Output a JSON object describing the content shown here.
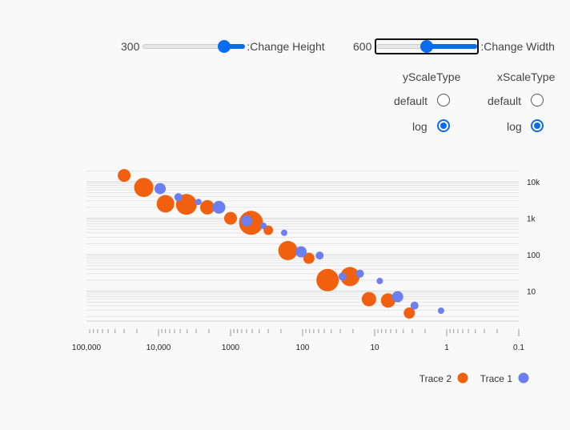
{
  "controls": {
    "height": {
      "value": "300",
      "label": ":Change Height",
      "fraction": 0.85
    },
    "width": {
      "value": "600",
      "label": ":Change Width",
      "fraction": 0.5
    },
    "y_scale": {
      "title": "yScaleType",
      "options": [
        "default",
        "log"
      ],
      "selected": "log"
    },
    "x_scale": {
      "title": "xScaleType",
      "options": [
        "default",
        "log"
      ],
      "selected": "log"
    }
  },
  "colors": {
    "accent": "#0a6cf0",
    "trace1": "#6b7ff0",
    "trace2": "#f0600f"
  },
  "chart_data": {
    "type": "scatter",
    "xscale": "log",
    "yscale": "log",
    "xlim": [
      100000,
      0.1
    ],
    "ylim": [
      1.5,
      25000
    ],
    "xticks": [
      {
        "v": 100000,
        "label": "100,000"
      },
      {
        "v": 10000,
        "label": "10,000"
      },
      {
        "v": 1000,
        "label": "1000"
      },
      {
        "v": 100,
        "label": "100"
      },
      {
        "v": 10,
        "label": "10"
      },
      {
        "v": 1,
        "label": "1"
      },
      {
        "v": 0.1,
        "label": "0.1"
      }
    ],
    "yticks": [
      {
        "v": 10000,
        "label": "10k"
      },
      {
        "v": 1000,
        "label": "1k"
      },
      {
        "v": 100,
        "label": "100"
      },
      {
        "v": 10,
        "label": "10"
      }
    ],
    "legend": [
      {
        "name": "Trace 2",
        "key": "trace2"
      },
      {
        "name": "Trace 1",
        "key": "trace1"
      }
    ],
    "series": [
      {
        "name": "Trace 2",
        "key": "trace2",
        "points": [
          {
            "x": 30000,
            "y": 15000,
            "s": 8
          },
          {
            "x": 16000,
            "y": 7000,
            "s": 12
          },
          {
            "x": 8000,
            "y": 2500,
            "s": 11
          },
          {
            "x": 4100,
            "y": 2400,
            "s": 13
          },
          {
            "x": 2100,
            "y": 2000,
            "s": 9
          },
          {
            "x": 1000,
            "y": 1000,
            "s": 8
          },
          {
            "x": 520,
            "y": 750,
            "s": 15
          },
          {
            "x": 300,
            "y": 470,
            "s": 6
          },
          {
            "x": 160,
            "y": 130,
            "s": 12
          },
          {
            "x": 82,
            "y": 80,
            "s": 7
          },
          {
            "x": 45,
            "y": 20,
            "s": 14
          },
          {
            "x": 22,
            "y": 25,
            "s": 12
          },
          {
            "x": 12,
            "y": 6,
            "s": 9
          },
          {
            "x": 6.5,
            "y": 5.5,
            "s": 9
          },
          {
            "x": 3.3,
            "y": 2.5,
            "s": 7
          }
        ]
      },
      {
        "name": "Trace 1",
        "key": "trace1",
        "points": [
          {
            "x": 9500,
            "y": 6500,
            "s": 7
          },
          {
            "x": 5300,
            "y": 3800,
            "s": 5
          },
          {
            "x": 2800,
            "y": 2800,
            "s": 4
          },
          {
            "x": 1450,
            "y": 2000,
            "s": 8
          },
          {
            "x": 600,
            "y": 850,
            "s": 7
          },
          {
            "x": 350,
            "y": 620,
            "s": 4
          },
          {
            "x": 180,
            "y": 400,
            "s": 4
          },
          {
            "x": 105,
            "y": 120,
            "s": 7
          },
          {
            "x": 58,
            "y": 95,
            "s": 5
          },
          {
            "x": 28,
            "y": 25,
            "s": 5
          },
          {
            "x": 16,
            "y": 30,
            "s": 5
          },
          {
            "x": 8.5,
            "y": 19,
            "s": 4
          },
          {
            "x": 4.8,
            "y": 7,
            "s": 7
          },
          {
            "x": 2.8,
            "y": 4,
            "s": 5
          },
          {
            "x": 1.2,
            "y": 2.9,
            "s": 4
          }
        ]
      }
    ]
  }
}
